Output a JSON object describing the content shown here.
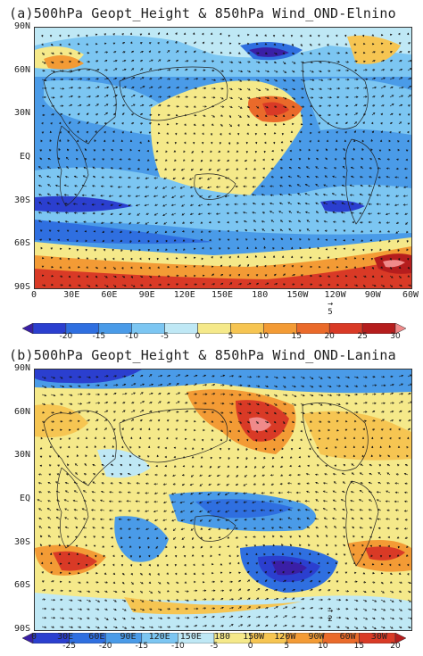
{
  "panels": [
    {
      "title": "(a)500hPa Geopt_Height & 850hPa Wind_OND-Elnino",
      "lat_labels": [
        "90N",
        "60N",
        "30N",
        "EQ",
        "30S",
        "60S",
        "90S"
      ],
      "lon_labels": [
        "0",
        "30E",
        "60E",
        "90E",
        "120E",
        "150E",
        "180",
        "150W",
        "120W",
        "90W",
        "60W"
      ],
      "ref_vector": "5",
      "colorbar_labels": [
        "-20",
        "-15",
        "-10",
        "-5",
        "0",
        "5",
        "10",
        "15",
        "20",
        "25",
        "30"
      ],
      "colorbar_colors": [
        "#3a1fa6",
        "#2b3fcf",
        "#2f6fe0",
        "#4a9be8",
        "#7cc6f2",
        "#bfe8f5",
        "#f5e98a",
        "#f6c552",
        "#f39b35",
        "#ea6a2a",
        "#d93a26",
        "#b51d1d",
        "#f08a8a"
      ]
    },
    {
      "title": "(b)500hPa Geopt_Height & 850hPa Wind_OND-Lanina",
      "lat_labels": [
        "90N",
        "60N",
        "30N",
        "EQ",
        "30S",
        "60S",
        "90S"
      ],
      "lon_labels": [
        "0",
        "30E",
        "60E",
        "90E",
        "120E",
        "150E",
        "180",
        "150W",
        "120W",
        "90W",
        "60W",
        "30W"
      ],
      "ref_vector": "2",
      "colorbar_labels": [
        "-25",
        "-20",
        "-15",
        "-10",
        "-5",
        "0",
        "5",
        "10",
        "15",
        "20"
      ],
      "colorbar_colors": [
        "#3a1fa6",
        "#2b3fcf",
        "#2f6fe0",
        "#4a9be8",
        "#7cc6f2",
        "#bfe8f5",
        "#f5e98a",
        "#f6c552",
        "#f39b35",
        "#ea6a2a",
        "#d93a26",
        "#b51d1d"
      ]
    }
  ]
}
